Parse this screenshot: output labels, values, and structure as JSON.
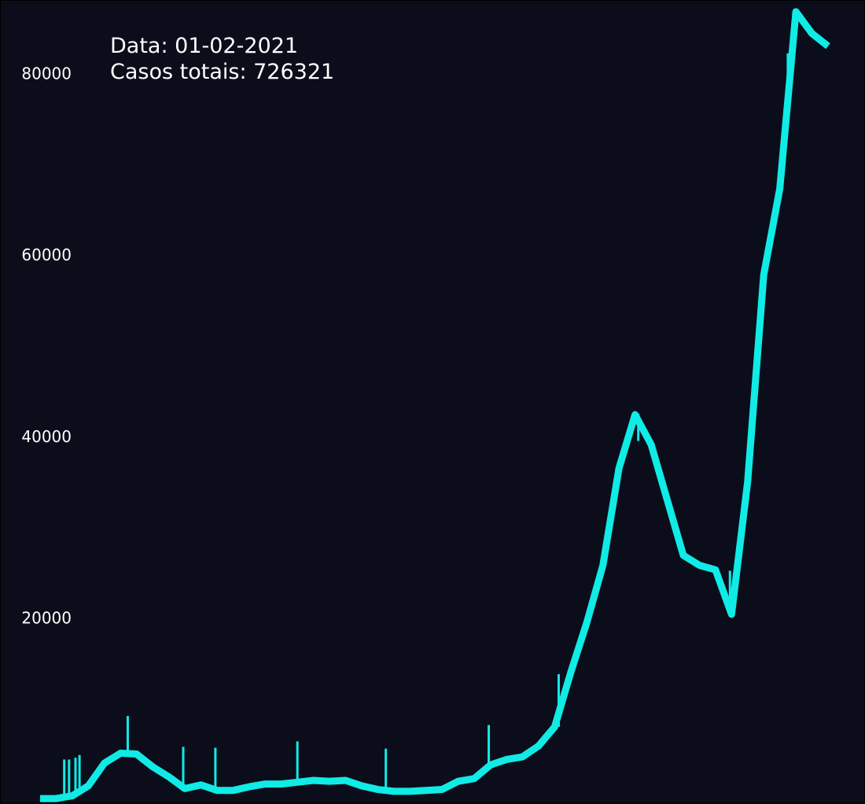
{
  "annotation": {
    "date_prefix": "Data: ",
    "date": "01-02-2021",
    "total_prefix": "Casos totais: ",
    "total": "726321"
  },
  "colors": {
    "background": "#0b0e1a",
    "line": "#10ebe6",
    "text": "#ffffff"
  },
  "chart_data": {
    "type": "line",
    "title": "",
    "xlabel": "",
    "ylabel": "",
    "ylim": [
      -500,
      88000
    ],
    "yticks": [
      20000,
      40000,
      60000,
      80000
    ],
    "grid": false,
    "x": [
      0,
      1,
      2,
      3,
      4,
      5,
      6,
      7,
      8,
      9,
      10,
      11,
      12,
      13,
      14,
      15,
      16,
      17,
      18,
      19,
      20,
      21,
      22,
      23,
      24,
      25,
      26,
      27,
      28,
      29,
      30,
      31,
      32,
      33,
      34,
      35,
      36,
      37,
      38,
      39,
      40,
      41,
      42,
      43,
      44,
      45,
      46,
      47,
      48,
      49
    ],
    "series": [
      {
        "name": "",
        "values": [
          100,
          100,
          400,
          1500,
          4000,
          5100,
          5000,
          3600,
          2500,
          1200,
          1600,
          1000,
          1000,
          1400,
          1700,
          1700,
          1900,
          2100,
          2000,
          2100,
          1500,
          1100,
          900,
          900,
          1000,
          1100,
          2000,
          2300,
          3800,
          4400,
          4700,
          5900,
          8000,
          14000,
          19500,
          25800,
          36500,
          42400,
          39100,
          33000,
          26900,
          25800,
          25300,
          20400,
          35000,
          57800,
          67300,
          86800,
          84400,
          83000
        ]
      }
    ],
    "spikes": [
      {
        "x": 1.5,
        "low": 500,
        "high": 4400
      },
      {
        "x": 1.8,
        "low": 500,
        "high": 4400
      },
      {
        "x": 2.2,
        "low": 500,
        "high": 4600
      },
      {
        "x": 2.45,
        "low": 500,
        "high": 4900
      },
      {
        "x": 5.45,
        "low": 5000,
        "high": 9200
      },
      {
        "x": 8.9,
        "low": 1300,
        "high": 5800
      },
      {
        "x": 10.9,
        "low": 1000,
        "high": 5700
      },
      {
        "x": 16.0,
        "low": 2000,
        "high": 6400
      },
      {
        "x": 21.5,
        "low": 1100,
        "high": 5600
      },
      {
        "x": 27.9,
        "low": 3600,
        "high": 8200
      },
      {
        "x": 32.25,
        "low": 8000,
        "high": 13800
      },
      {
        "x": 37.2,
        "low": 39500,
        "high": 42500
      },
      {
        "x": 42.9,
        "low": 21000,
        "high": 25200
      },
      {
        "x": 46.5,
        "low": 76000,
        "high": 82200
      }
    ]
  }
}
